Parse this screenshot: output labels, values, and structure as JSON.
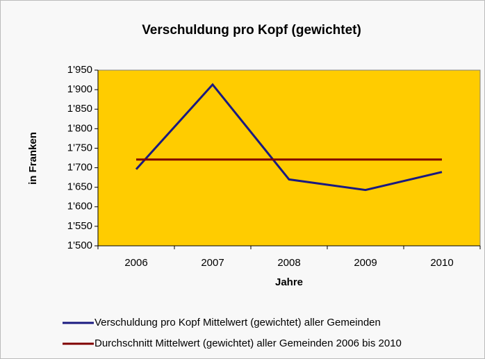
{
  "chart_data": {
    "type": "line",
    "title": "Verschuldung pro Kopf (gewichtet)",
    "ylabel": "in Franken",
    "xlabel": "Jahre",
    "categories": [
      "2006",
      "2007",
      "2008",
      "2009",
      "2010"
    ],
    "series": [
      {
        "name": "Verschuldung pro Kopf Mittelwert (gewichtet) aller Gemeinden",
        "color": "#1a1a80",
        "values": [
          1696,
          1913,
          1670,
          1643,
          1689
        ]
      },
      {
        "name": "Durchschnitt Mittelwert (gewichtet) aller Gemeinden 2006 bis 2010",
        "color": "#800000",
        "values": [
          1721,
          1721,
          1721,
          1721,
          1721
        ]
      }
    ],
    "ylim": [
      1500,
      1950
    ],
    "yticks": [
      {
        "value": 1500,
        "label": "1'500"
      },
      {
        "value": 1550,
        "label": "1'550"
      },
      {
        "value": 1600,
        "label": "1'600"
      },
      {
        "value": 1650,
        "label": "1'650"
      },
      {
        "value": 1700,
        "label": "1'700"
      },
      {
        "value": 1750,
        "label": "1'750"
      },
      {
        "value": 1800,
        "label": "1'800"
      },
      {
        "value": 1850,
        "label": "1'850"
      },
      {
        "value": 1900,
        "label": "1'900"
      },
      {
        "value": 1950,
        "label": "1'950"
      }
    ],
    "grid": false,
    "plot_background": "#ffcc00"
  }
}
